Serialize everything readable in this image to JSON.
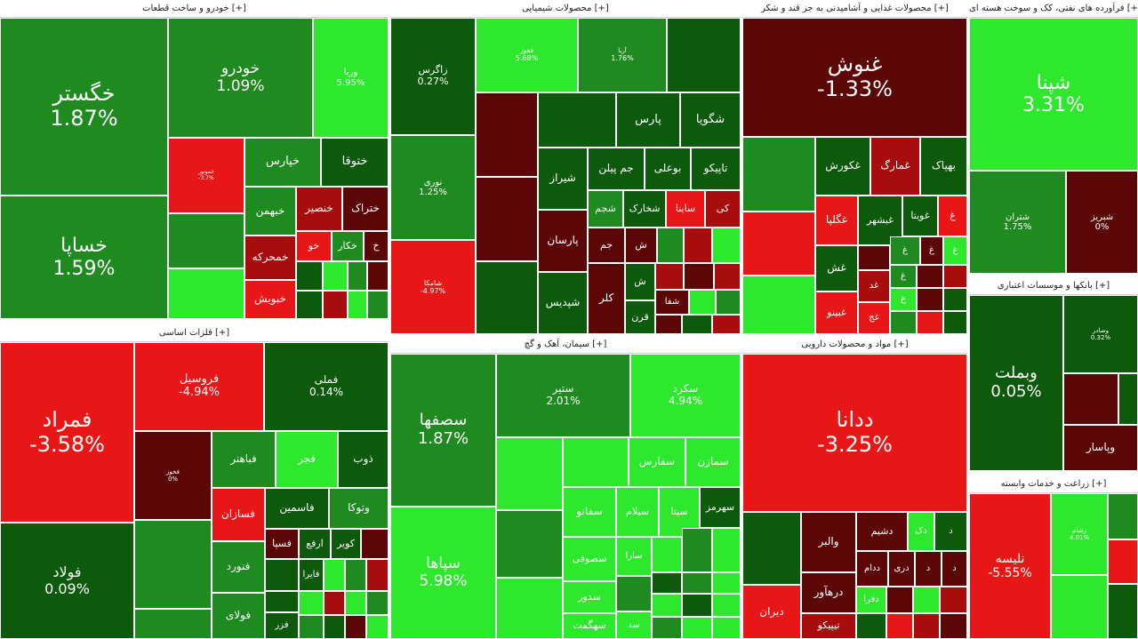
{
  "colors": {
    "dark_green": "#0d5a0d",
    "mid_green": "#1f8a1f",
    "bright_green": "#2ee82e",
    "bright_red": "#e81616",
    "mid_red": "#a80d0d",
    "dark_red": "#5c0707",
    "logo_red": "#e01b1b"
  },
  "logo_icon": "news-agency-logo",
  "sectors": {
    "auto": {
      "title": "خودرو و ساخت قطعات [+]",
      "tiles": [
        {
          "name": "خگستر",
          "pct": "1.87%"
        },
        {
          "name": "خساپا",
          "pct": "1.59%"
        },
        {
          "name": "خودرو",
          "pct": "1.09%"
        },
        {
          "name": "وریا",
          "pct": "5.95%"
        },
        {
          "name": "خموتور",
          "pct": "-3.7%"
        },
        {
          "name": "خپارس",
          "pct": ""
        },
        {
          "name": "ختوقا",
          "pct": ""
        },
        {
          "name": "خبهمن",
          "pct": ""
        },
        {
          "name": "خنصیر",
          "pct": ""
        },
        {
          "name": "ختراک",
          "pct": ""
        },
        {
          "name": "خمحرکه",
          "pct": ""
        },
        {
          "name": "خو",
          "pct": ""
        },
        {
          "name": "خکار",
          "pct": ""
        },
        {
          "name": "خ",
          "pct": ""
        },
        {
          "name": "خبویش",
          "pct": ""
        }
      ]
    },
    "chem": {
      "title": "محصولات شیمیایی [+]",
      "tiles": [
        {
          "name": "زاگرس",
          "pct": "0.27%"
        },
        {
          "name": "فخوز",
          "pct": "5.68%"
        },
        {
          "name": "آریا",
          "pct": "1.76%"
        },
        {
          "name": "نوری",
          "pct": "1.25%"
        },
        {
          "name": "شامکا",
          "pct": "-4.97%"
        },
        {
          "name": "پارس",
          "pct": ""
        },
        {
          "name": "شگویا",
          "pct": ""
        },
        {
          "name": "جم پیلن",
          "pct": ""
        },
        {
          "name": "بوعلی",
          "pct": ""
        },
        {
          "name": "تاپیکو",
          "pct": ""
        },
        {
          "name": "شیراز",
          "pct": ""
        },
        {
          "name": "شخارک",
          "pct": ""
        },
        {
          "name": "ساینا",
          "pct": ""
        },
        {
          "name": "کی",
          "pct": ""
        },
        {
          "name": "شجم",
          "pct": ""
        },
        {
          "name": "پارسان",
          "pct": ""
        },
        {
          "name": "جم",
          "pct": ""
        },
        {
          "name": "ش",
          "pct": ""
        },
        {
          "name": "شفا",
          "pct": ""
        },
        {
          "name": "شپدیس",
          "pct": ""
        },
        {
          "name": "کلر",
          "pct": ""
        },
        {
          "name": "قرن",
          "pct": ""
        }
      ]
    },
    "food": {
      "title": "محصولات غذایی و آشامیدنی به جز قند و شکر [+]",
      "tiles": [
        {
          "name": "غنوش",
          "pct": "-1.33%"
        },
        {
          "name": "غکورش",
          "pct": ""
        },
        {
          "name": "غمارگ",
          "pct": ""
        },
        {
          "name": "بهپاک",
          "pct": ""
        },
        {
          "name": "غگلپا",
          "pct": ""
        },
        {
          "name": "غبشهر",
          "pct": ""
        },
        {
          "name": "غویتا",
          "pct": ""
        },
        {
          "name": "غش",
          "pct": ""
        },
        {
          "name": "غبینو",
          "pct": ""
        },
        {
          "name": "غد",
          "pct": ""
        },
        {
          "name": "غ",
          "pct": ""
        },
        {
          "name": "غج",
          "pct": ""
        }
      ]
    },
    "oil": {
      "title": "فرآورده های نفتی، کک و سوخت هسته ای [+]",
      "tiles": [
        {
          "name": "شپنا",
          "pct": "3.31%"
        },
        {
          "name": "شتران",
          "pct": "1.75%"
        },
        {
          "name": "شبریز",
          "pct": "0%"
        }
      ]
    },
    "metals": {
      "title": "فلزات اساسی [+]",
      "tiles": [
        {
          "name": "فمراد",
          "pct": "-3.58%"
        },
        {
          "name": "فولاد",
          "pct": "0.09%"
        },
        {
          "name": "فروسیل",
          "pct": "-4.94%"
        },
        {
          "name": "فملی",
          "pct": "0.14%"
        },
        {
          "name": "فخوز",
          "pct": "0%"
        },
        {
          "name": "فباهنر",
          "pct": ""
        },
        {
          "name": "فجر",
          "pct": ""
        },
        {
          "name": "ذوب",
          "pct": ""
        },
        {
          "name": "فسازان",
          "pct": ""
        },
        {
          "name": "فاسمین",
          "pct": ""
        },
        {
          "name": "وتوکا",
          "pct": ""
        },
        {
          "name": "فسپا",
          "pct": ""
        },
        {
          "name": "ارفع",
          "pct": ""
        },
        {
          "name": "کویر",
          "pct": ""
        },
        {
          "name": "فنورد",
          "pct": ""
        },
        {
          "name": "فایرا",
          "pct": ""
        },
        {
          "name": "فولای",
          "pct": ""
        },
        {
          "name": "فزر",
          "pct": ""
        }
      ]
    },
    "cement": {
      "title": "سیمان، آهک و گچ [+]",
      "tiles": [
        {
          "name": "سصفها",
          "pct": "1.87%"
        },
        {
          "name": "سپاها",
          "pct": "5.98%"
        },
        {
          "name": "ستیر",
          "pct": "2.01%"
        },
        {
          "name": "سکرد",
          "pct": "4.94%"
        },
        {
          "name": "سفارس",
          "pct": ""
        },
        {
          "name": "سمازن",
          "pct": ""
        },
        {
          "name": "سفانو",
          "pct": ""
        },
        {
          "name": "سیلام",
          "pct": ""
        },
        {
          "name": "سیتا",
          "pct": ""
        },
        {
          "name": "سهرمز",
          "pct": ""
        },
        {
          "name": "سارا",
          "pct": ""
        },
        {
          "name": "سصوفی",
          "pct": ""
        },
        {
          "name": "سدور",
          "pct": ""
        },
        {
          "name": "سهگمت",
          "pct": ""
        },
        {
          "name": "سد",
          "pct": ""
        }
      ]
    },
    "pharma": {
      "title": "مواد و محصولات دارویی [+]",
      "tiles": [
        {
          "name": "ددانا",
          "pct": "-3.25%"
        },
        {
          "name": "والبر",
          "pct": ""
        },
        {
          "name": "دشیم",
          "pct": ""
        },
        {
          "name": "دک",
          "pct": ""
        },
        {
          "name": "ددام",
          "pct": ""
        },
        {
          "name": "دری",
          "pct": ""
        },
        {
          "name": "درهآور",
          "pct": ""
        },
        {
          "name": "دفرا",
          "pct": ""
        },
        {
          "name": "دیران",
          "pct": ""
        },
        {
          "name": "تیپیکو",
          "pct": ""
        },
        {
          "name": "د",
          "pct": ""
        }
      ]
    },
    "banks": {
      "title": "بانکها و موسسات اعتباری [+]",
      "tiles": [
        {
          "name": "وبملت",
          "pct": "0.05%"
        },
        {
          "name": "وصادر",
          "pct": "0.32%"
        },
        {
          "name": "وپاسار",
          "pct": ""
        }
      ]
    },
    "farm": {
      "title": "زراعت و خدمات وابسته [+]",
      "tiles": [
        {
          "name": "تلیسه",
          "pct": "-5.55%"
        },
        {
          "name": "زشام",
          "pct": "4.01%"
        }
      ]
    }
  }
}
